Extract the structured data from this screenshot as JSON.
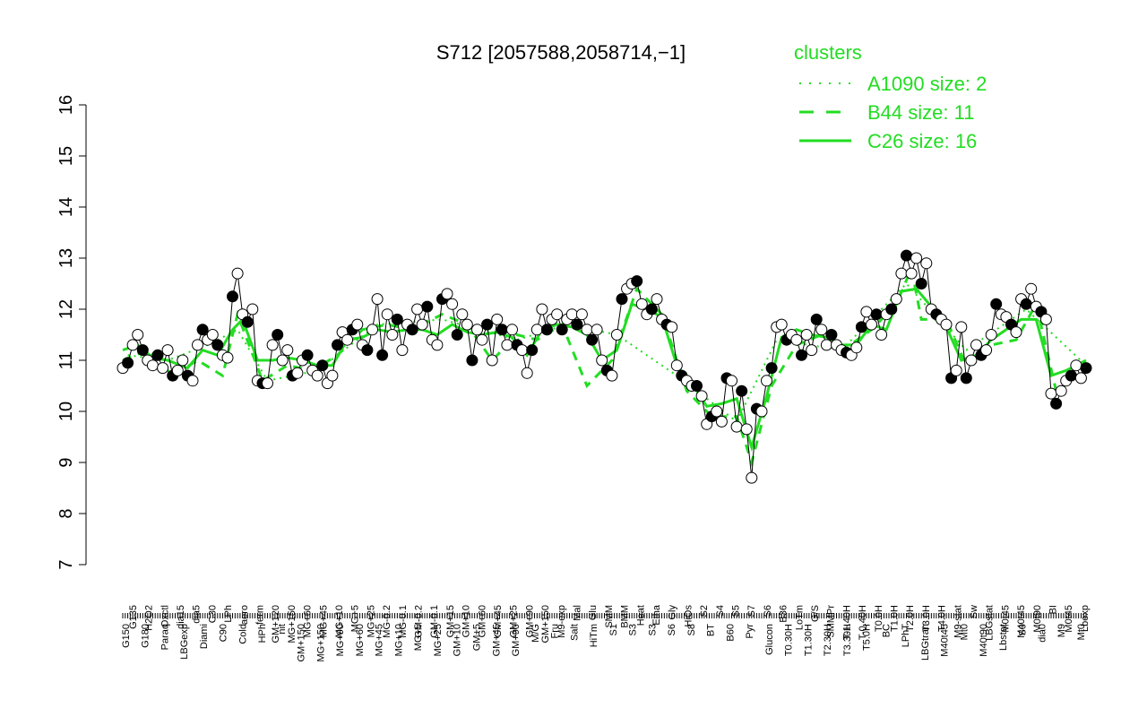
{
  "chart_data": {
    "type": "line",
    "title": "S712 [2057588,2058714,−1]",
    "xlabel": "",
    "ylabel": "",
    "ylim": [
      7,
      16
    ],
    "yticks": [
      7,
      8,
      9,
      10,
      11,
      12,
      13,
      14,
      15,
      16
    ],
    "grid": false,
    "legend_position": "top-right",
    "legend": {
      "title": "clusters",
      "entries": [
        {
          "label": "A1090 size: 2",
          "style": "dotted"
        },
        {
          "label": "B44 size: 11",
          "style": "dashed"
        },
        {
          "label": "C26 size: 16",
          "style": "solid"
        }
      ]
    },
    "colors": {
      "legend": "#22dd22",
      "series_line": "#22dd22",
      "profile_line": "#000000"
    },
    "top_tick_labels": [
      "G135",
      "H2O2",
      "Oxctl",
      "dia15",
      "dia5",
      "C30",
      "LPh",
      "aero",
      "ferm",
      "GM+120",
      "MG+150",
      "MG+60",
      "MG+45",
      "MG+10",
      "MG+5",
      "MG+25",
      "MG-0.2",
      "MG-0.1",
      "GM-0.2",
      "GM-0.1",
      "GM+15",
      "GM+10",
      "GM+60",
      "GM+45",
      "GM+25",
      "GM+90",
      "GM+150",
      "M9-exp",
      "Mal",
      "Glu",
      "SMM",
      "BMM",
      "Heat",
      "Etha",
      "Gly",
      "HiOs",
      "S2",
      "S4",
      "S5",
      "S7",
      "S6",
      "B36",
      "LoTm",
      "G/S",
      "SMMPr",
      "T-1.40H",
      "T-0.40H",
      "T0.0H",
      "T1.0H",
      "T2.0H",
      "T3.0H",
      "T4.0H",
      "M9-stat",
      "Sw",
      "LBGstat",
      "M0t45",
      "M40t45",
      "M0t90",
      "BI",
      "M0t45",
      "Lbexp"
    ],
    "bottom_tick_labels": [
      "G150",
      "G180",
      "Paraq",
      "LBGexp",
      "Diami",
      "C90",
      "Cold",
      "HPh",
      "nit",
      "GM+150",
      "MG+150",
      "MG+90",
      "MG+60",
      "MG+45",
      "MG+10",
      "MG+5",
      "MG+25",
      "GM+10",
      "GM+5",
      "GM+45",
      "GM+90",
      "M/G",
      "Fru",
      "Salt",
      "HiTm",
      "S1",
      "S3",
      "S3",
      "S6",
      "S8",
      "BT",
      "B60",
      "Pyr",
      "Glucon",
      "T0.30H",
      "T1.30H",
      "T2.30H",
      "T3.30H",
      "T5.0H",
      "BC",
      "LPhT",
      "LBGtran",
      "M40t45",
      "Mt0",
      "M40t90",
      "Lbstat",
      "S0",
      "dia0",
      "M9",
      "Mt0"
    ],
    "profile": [
      [
        1,
        10.85
      ],
      [
        3,
        10.95
      ],
      [
        5,
        11.3
      ],
      [
        7,
        11.5
      ],
      [
        9,
        11.2
      ],
      [
        11,
        11.0
      ],
      [
        13,
        10.9
      ],
      [
        15,
        11.1
      ],
      [
        17,
        10.85
      ],
      [
        19,
        11.2
      ],
      [
        21,
        10.7
      ],
      [
        23,
        10.8
      ],
      [
        25,
        11.0
      ],
      [
        27,
        10.7
      ],
      [
        29,
        10.6
      ],
      [
        31,
        11.3
      ],
      [
        33,
        11.6
      ],
      [
        35,
        11.4
      ],
      [
        37,
        11.5
      ],
      [
        39,
        11.3
      ],
      [
        41,
        11.1
      ],
      [
        43,
        11.05
      ],
      [
        45,
        12.25
      ],
      [
        47,
        12.7
      ],
      [
        49,
        11.9
      ],
      [
        51,
        11.75
      ],
      [
        53,
        12.0
      ],
      [
        55,
        10.6
      ],
      [
        57,
        10.55
      ],
      [
        59,
        10.55
      ],
      [
        61,
        11.3
      ],
      [
        63,
        11.5
      ],
      [
        65,
        11.0
      ],
      [
        67,
        11.2
      ],
      [
        69,
        10.7
      ],
      [
        71,
        10.75
      ],
      [
        73,
        11.0
      ],
      [
        75,
        11.1
      ],
      [
        77,
        10.8
      ],
      [
        79,
        10.7
      ],
      [
        81,
        10.9
      ],
      [
        83,
        10.55
      ],
      [
        85,
        10.7
      ],
      [
        87,
        11.3
      ],
      [
        89,
        11.55
      ],
      [
        91,
        11.4
      ],
      [
        93,
        11.6
      ],
      [
        95,
        11.7
      ],
      [
        97,
        11.3
      ],
      [
        99,
        11.2
      ],
      [
        101,
        11.6
      ],
      [
        103,
        12.2
      ],
      [
        105,
        11.1
      ],
      [
        107,
        11.9
      ],
      [
        109,
        11.5
      ],
      [
        111,
        11.8
      ],
      [
        113,
        11.2
      ],
      [
        115,
        11.7
      ],
      [
        117,
        11.6
      ],
      [
        119,
        12.0
      ],
      [
        121,
        11.7
      ],
      [
        123,
        12.05
      ],
      [
        125,
        11.4
      ],
      [
        127,
        11.3
      ],
      [
        129,
        12.2
      ],
      [
        131,
        12.3
      ],
      [
        133,
        12.1
      ],
      [
        135,
        11.5
      ],
      [
        137,
        11.9
      ],
      [
        139,
        11.7
      ],
      [
        141,
        11.0
      ],
      [
        143,
        11.6
      ],
      [
        145,
        11.4
      ],
      [
        147,
        11.7
      ],
      [
        149,
        11.0
      ],
      [
        151,
        11.8
      ],
      [
        153,
        11.6
      ],
      [
        155,
        11.3
      ],
      [
        157,
        11.6
      ],
      [
        159,
        11.3
      ],
      [
        161,
        11.2
      ],
      [
        163,
        10.75
      ],
      [
        165,
        11.2
      ],
      [
        167,
        11.6
      ],
      [
        169,
        12.0
      ],
      [
        171,
        11.6
      ],
      [
        173,
        11.8
      ],
      [
        175,
        11.9
      ],
      [
        177,
        11.6
      ],
      [
        179,
        11.8
      ],
      [
        181,
        11.9
      ],
      [
        183,
        11.7
      ],
      [
        185,
        11.9
      ],
      [
        187,
        11.6
      ],
      [
        189,
        11.4
      ],
      [
        191,
        11.6
      ],
      [
        193,
        11.0
      ],
      [
        195,
        10.8
      ],
      [
        197,
        10.7
      ],
      [
        199,
        11.5
      ],
      [
        201,
        12.2
      ],
      [
        203,
        12.4
      ],
      [
        205,
        12.5
      ],
      [
        207,
        12.55
      ],
      [
        209,
        12.1
      ],
      [
        211,
        11.9
      ],
      [
        213,
        12.0
      ],
      [
        215,
        12.2
      ],
      [
        217,
        11.8
      ],
      [
        219,
        11.7
      ],
      [
        221,
        11.65
      ],
      [
        223,
        10.9
      ],
      [
        225,
        10.7
      ],
      [
        227,
        10.6
      ],
      [
        229,
        10.5
      ],
      [
        231,
        10.5
      ],
      [
        233,
        10.3
      ],
      [
        235,
        9.75
      ],
      [
        237,
        9.9
      ],
      [
        239,
        10.0
      ],
      [
        241,
        9.8
      ],
      [
        243,
        10.65
      ],
      [
        245,
        10.6
      ],
      [
        247,
        9.7
      ],
      [
        249,
        10.4
      ],
      [
        251,
        9.65
      ],
      [
        253,
        8.7
      ],
      [
        255,
        10.05
      ],
      [
        257,
        10.0
      ],
      [
        259,
        10.6
      ],
      [
        261,
        10.85
      ],
      [
        263,
        11.65
      ],
      [
        265,
        11.7
      ],
      [
        267,
        11.4
      ],
      [
        269,
        11.5
      ],
      [
        271,
        11.4
      ],
      [
        273,
        11.1
      ],
      [
        275,
        11.5
      ],
      [
        277,
        11.2
      ],
      [
        279,
        11.8
      ],
      [
        281,
        11.6
      ],
      [
        283,
        11.3
      ],
      [
        285,
        11.5
      ],
      [
        287,
        11.3
      ],
      [
        289,
        11.2
      ],
      [
        291,
        11.15
      ],
      [
        293,
        11.1
      ],
      [
        295,
        11.25
      ],
      [
        297,
        11.65
      ],
      [
        299,
        11.95
      ],
      [
        301,
        11.7
      ],
      [
        303,
        11.9
      ],
      [
        305,
        11.5
      ],
      [
        307,
        11.9
      ],
      [
        309,
        12.0
      ],
      [
        311,
        12.2
      ],
      [
        313,
        12.7
      ],
      [
        315,
        13.05
      ],
      [
        317,
        12.7
      ],
      [
        319,
        13.0
      ],
      [
        321,
        12.5
      ],
      [
        323,
        12.9
      ],
      [
        325,
        12.0
      ],
      [
        327,
        11.9
      ],
      [
        329,
        11.8
      ],
      [
        331,
        11.7
      ],
      [
        333,
        10.65
      ],
      [
        335,
        10.8
      ],
      [
        337,
        11.65
      ],
      [
        339,
        10.65
      ],
      [
        341,
        11.0
      ],
      [
        343,
        11.3
      ],
      [
        345,
        11.1
      ],
      [
        347,
        11.2
      ],
      [
        349,
        11.5
      ],
      [
        351,
        12.1
      ],
      [
        353,
        11.9
      ],
      [
        355,
        11.85
      ],
      [
        357,
        11.7
      ],
      [
        359,
        11.55
      ],
      [
        361,
        12.2
      ],
      [
        363,
        12.1
      ],
      [
        365,
        12.4
      ],
      [
        367,
        12.05
      ],
      [
        369,
        11.95
      ],
      [
        371,
        11.8
      ],
      [
        373,
        10.35
      ],
      [
        375,
        10.15
      ],
      [
        377,
        10.4
      ],
      [
        379,
        10.6
      ],
      [
        381,
        10.7
      ],
      [
        383,
        10.9
      ],
      [
        385,
        10.65
      ],
      [
        387,
        10.85
      ]
    ],
    "trend_solid": [
      [
        1,
        11.2
      ],
      [
        7,
        11.3
      ],
      [
        13,
        11.05
      ],
      [
        19,
        11.0
      ],
      [
        27,
        10.85
      ],
      [
        33,
        11.2
      ],
      [
        39,
        11.1
      ],
      [
        45,
        11.6
      ],
      [
        49,
        11.8
      ],
      [
        55,
        11.0
      ],
      [
        61,
        11.0
      ],
      [
        67,
        11.05
      ],
      [
        73,
        11.0
      ],
      [
        79,
        10.9
      ],
      [
        85,
        10.9
      ],
      [
        91,
        11.4
      ],
      [
        97,
        11.45
      ],
      [
        103,
        11.6
      ],
      [
        109,
        11.55
      ],
      [
        115,
        11.6
      ],
      [
        121,
        11.6
      ],
      [
        127,
        11.5
      ],
      [
        133,
        11.7
      ],
      [
        139,
        11.55
      ],
      [
        145,
        11.5
      ],
      [
        151,
        11.55
      ],
      [
        157,
        11.45
      ],
      [
        163,
        11.1
      ],
      [
        169,
        11.6
      ],
      [
        175,
        11.7
      ],
      [
        181,
        11.65
      ],
      [
        187,
        11.5
      ],
      [
        193,
        11.0
      ],
      [
        199,
        11.2
      ],
      [
        205,
        12.1
      ],
      [
        211,
        12.0
      ],
      [
        217,
        11.85
      ],
      [
        223,
        10.9
      ],
      [
        229,
        10.55
      ],
      [
        235,
        10.1
      ],
      [
        241,
        10.15
      ],
      [
        247,
        10.25
      ],
      [
        253,
        9.3
      ],
      [
        259,
        10.3
      ],
      [
        265,
        11.45
      ],
      [
        271,
        11.6
      ],
      [
        277,
        11.5
      ],
      [
        283,
        11.45
      ],
      [
        289,
        11.3
      ],
      [
        295,
        11.3
      ],
      [
        301,
        11.7
      ],
      [
        307,
        11.6
      ],
      [
        313,
        12.35
      ],
      [
        319,
        12.4
      ],
      [
        325,
        12.05
      ],
      [
        331,
        11.65
      ],
      [
        337,
        11.0
      ],
      [
        343,
        11.1
      ],
      [
        349,
        11.4
      ],
      [
        355,
        11.6
      ],
      [
        361,
        11.8
      ],
      [
        367,
        11.8
      ],
      [
        373,
        10.7
      ],
      [
        379,
        10.8
      ],
      [
        387,
        11.0
      ]
    ],
    "trend_dashed": [
      [
        1,
        11.0
      ],
      [
        11,
        11.2
      ],
      [
        21,
        10.7
      ],
      [
        31,
        11.0
      ],
      [
        41,
        10.7
      ],
      [
        47,
        11.9
      ],
      [
        57,
        10.6
      ],
      [
        67,
        10.9
      ],
      [
        77,
        10.8
      ],
      [
        87,
        11.1
      ],
      [
        97,
        11.6
      ],
      [
        107,
        11.7
      ],
      [
        117,
        11.6
      ],
      [
        129,
        11.9
      ],
      [
        139,
        11.7
      ],
      [
        149,
        11.0
      ],
      [
        159,
        11.5
      ],
      [
        167,
        11.4
      ],
      [
        177,
        11.7
      ],
      [
        187,
        10.5
      ],
      [
        197,
        11.0
      ],
      [
        207,
        12.4
      ],
      [
        217,
        11.9
      ],
      [
        227,
        10.4
      ],
      [
        237,
        9.9
      ],
      [
        247,
        9.9
      ],
      [
        253,
        9.0
      ],
      [
        261,
        10.5
      ],
      [
        271,
        11.3
      ],
      [
        281,
        11.5
      ],
      [
        291,
        11.25
      ],
      [
        301,
        11.6
      ],
      [
        311,
        12.1
      ],
      [
        317,
        12.8
      ],
      [
        321,
        11.8
      ],
      [
        331,
        11.8
      ],
      [
        339,
        10.9
      ],
      [
        349,
        11.3
      ],
      [
        359,
        11.4
      ],
      [
        367,
        12.1
      ],
      [
        375,
        10.4
      ],
      [
        387,
        10.8
      ]
    ],
    "trend_dotted": [
      [
        3,
        11.1
      ],
      [
        19,
        11.0
      ],
      [
        35,
        11.3
      ],
      [
        47,
        11.6
      ],
      [
        59,
        10.6
      ],
      [
        79,
        10.8
      ],
      [
        103,
        11.7
      ],
      [
        129,
        11.8
      ],
      [
        159,
        11.4
      ],
      [
        179,
        11.7
      ],
      [
        199,
        11.5
      ],
      [
        223,
        10.7
      ],
      [
        247,
        9.8
      ],
      [
        263,
        11.4
      ],
      [
        289,
        11.2
      ],
      [
        315,
        12.5
      ],
      [
        339,
        11.2
      ],
      [
        363,
        12.0
      ],
      [
        387,
        10.9
      ]
    ]
  }
}
